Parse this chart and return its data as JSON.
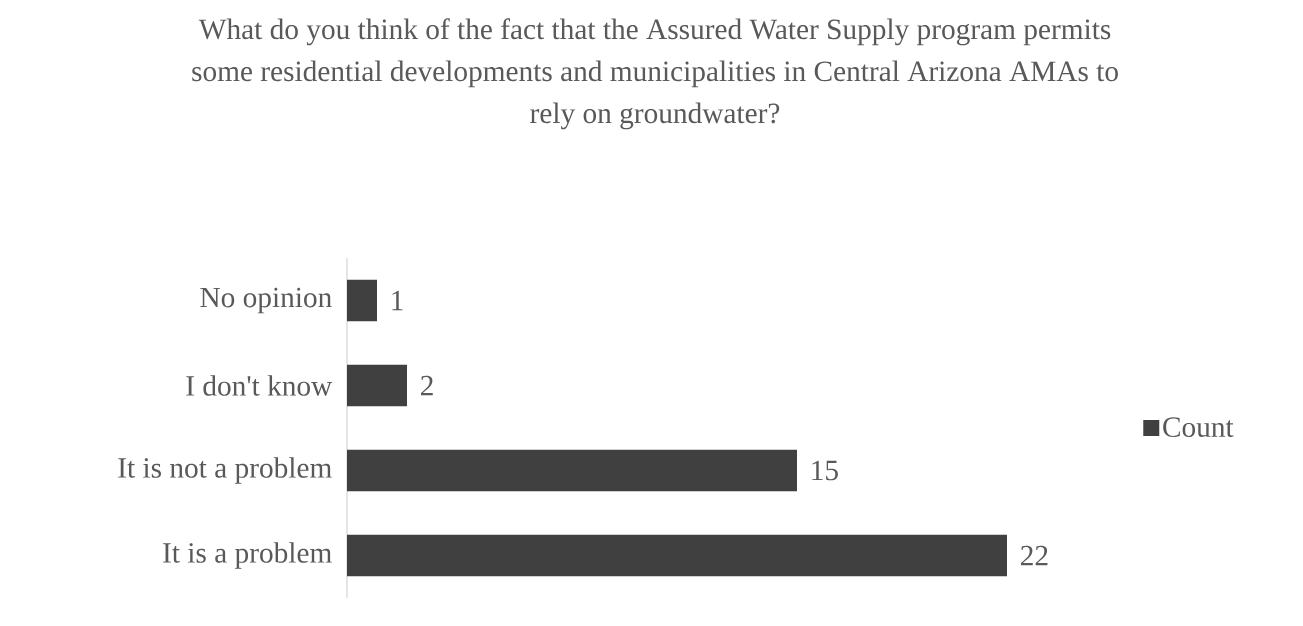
{
  "chart_data": {
    "type": "bar",
    "orientation": "horizontal",
    "title": "What do you think of the fact that the Assured Water Supply program permits some residential developments and municipalities in Central Arizona AMAs to rely on groundwater?",
    "categories": [
      "No opinion",
      "I don't know",
      "It is not a problem",
      "It is a problem"
    ],
    "series": [
      {
        "name": "Count",
        "color": "#404040",
        "values": [
          1,
          2,
          15,
          22
        ]
      }
    ],
    "data_labels": true,
    "legend": "right"
  }
}
